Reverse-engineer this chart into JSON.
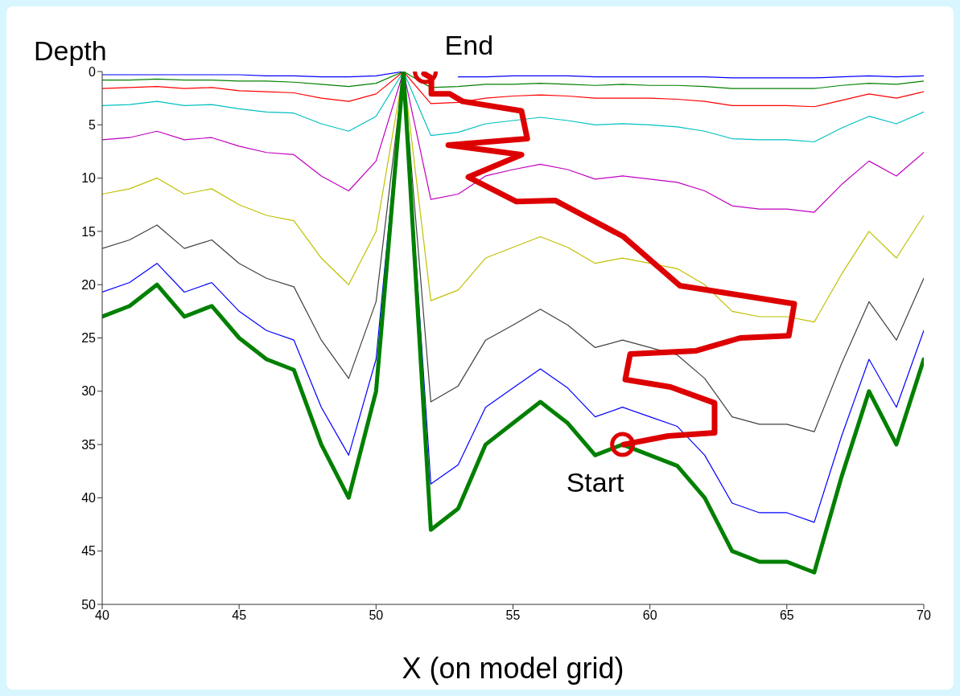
{
  "chart_data": {
    "type": "line",
    "xlabel": "X (on model grid)",
    "ylabel": "Depth",
    "xlim": [
      40,
      70
    ],
    "xticks": [
      40,
      45,
      50,
      55,
      60,
      65,
      70
    ],
    "ylim": [
      50,
      0
    ],
    "yticks": [
      0,
      5,
      10,
      15,
      20,
      25,
      30,
      35,
      40,
      45,
      50
    ],
    "marker": "none",
    "x": [
      40,
      41,
      42,
      43,
      44,
      45,
      46,
      47,
      48,
      49,
      50,
      51,
      52,
      53,
      54,
      55,
      56,
      57,
      58,
      59,
      60,
      61,
      62,
      63,
      64,
      65,
      66,
      67,
      68,
      69,
      70
    ],
    "series": [
      {
        "color": "#0000ff",
        "values": [
          0.3,
          0.3,
          0.3,
          0.3,
          0.3,
          0.3,
          0.4,
          0.4,
          0.5,
          0.5,
          0.4,
          0,
          null,
          0.5,
          0.5,
          0.4,
          0.4,
          0.4,
          0.5,
          0.5,
          0.5,
          0.5,
          0.5,
          0.6,
          0.6,
          0.6,
          0.6,
          0.5,
          0.4,
          0.5,
          0.4
        ]
      },
      {
        "color": "#008000",
        "values": [
          0.8,
          0.8,
          0.7,
          0.8,
          0.8,
          0.9,
          0.9,
          1,
          1.2,
          1.4,
          1.1,
          0,
          1.5,
          1.4,
          1.2,
          1.2,
          1.1,
          1.2,
          1.3,
          1.2,
          1.3,
          1.3,
          1.4,
          1.6,
          1.6,
          1.6,
          1.6,
          1.3,
          1.1,
          1.2,
          0.9
        ]
      },
      {
        "color": "#ff0000",
        "values": [
          1.6,
          1.5,
          1.4,
          1.6,
          1.5,
          1.8,
          1.9,
          2,
          2.5,
          2.8,
          2.1,
          0,
          3,
          2.9,
          2.5,
          2.3,
          2.2,
          2.3,
          2.5,
          2.5,
          2.5,
          2.6,
          2.8,
          3.2,
          3.2,
          3.2,
          3.3,
          2.7,
          2.1,
          2.5,
          1.9
        ]
      },
      {
        "color": "#00c0c0",
        "values": [
          3.2,
          3.1,
          2.8,
          3.2,
          3.1,
          3.5,
          3.8,
          3.9,
          4.9,
          5.6,
          4.2,
          0,
          6,
          5.7,
          4.9,
          4.6,
          4.3,
          4.6,
          5,
          4.9,
          5,
          5.2,
          5.6,
          6.3,
          6.4,
          6.4,
          6.6,
          5.3,
          4.2,
          4.9,
          3.8
        ]
      },
      {
        "color": "#c000c0",
        "values": [
          6.4,
          6.2,
          5.6,
          6.4,
          6.2,
          7,
          7.6,
          7.8,
          9.8,
          11.2,
          8.4,
          0,
          12,
          11.5,
          9.8,
          9.2,
          8.7,
          9.2,
          10.1,
          9.8,
          10.1,
          10.4,
          11.2,
          12.6,
          12.9,
          12.9,
          13.2,
          10.6,
          8.4,
          9.8,
          7.6
        ]
      },
      {
        "color": "#c0c000",
        "values": [
          11.5,
          11,
          10,
          11.5,
          11,
          12.5,
          13.5,
          14,
          17.5,
          20,
          15,
          0,
          21.5,
          20.5,
          17.5,
          16.5,
          15.5,
          16.5,
          18,
          17.5,
          18,
          18.5,
          20,
          22.5,
          23,
          23,
          23.5,
          19,
          15,
          17.5,
          13.5
        ]
      },
      {
        "color": "#404040",
        "values": [
          16.6,
          15.8,
          14.4,
          16.6,
          15.8,
          18,
          19.4,
          20.2,
          25.2,
          28.8,
          21.6,
          0,
          31,
          29.5,
          25.2,
          23.8,
          22.3,
          23.8,
          25.9,
          25.2,
          25.9,
          26.6,
          28.8,
          32.4,
          33.1,
          33.1,
          33.8,
          27.4,
          21.6,
          25.2,
          19.4
        ]
      },
      {
        "color": "#0000ff",
        "values": [
          20.7,
          19.8,
          18,
          20.7,
          19.8,
          22.5,
          24.3,
          25.2,
          31.5,
          36,
          27,
          0,
          38.7,
          36.9,
          31.5,
          29.7,
          27.9,
          29.7,
          32.4,
          31.5,
          32.4,
          33.3,
          36,
          40.5,
          41.4,
          41.4,
          42.3,
          34.2,
          27,
          31.5,
          24.3
        ]
      },
      {
        "color": "#008000",
        "values": [
          23,
          22,
          20,
          23,
          22,
          25,
          27,
          28,
          35,
          40,
          30,
          0,
          43,
          41,
          35,
          33,
          31,
          33,
          36,
          35,
          36,
          37,
          40,
          45,
          46,
          46,
          47,
          38,
          30,
          35,
          27
        ]
      },
      {
        "color": "#dd0000",
        "x": [
          59.04,
          60.66,
          62.36,
          62.36,
          60.75,
          59.1,
          59.28,
          61.69,
          63.3,
          65.07,
          65.27,
          61.1,
          59.04,
          56.54,
          55.13,
          53.37,
          55.31,
          52.64,
          55.52,
          55.31,
          53.16,
          52.69,
          52.02,
          52.02,
          51.75
        ],
        "values": [
          35,
          34.2,
          33.9,
          31.1,
          29.6,
          28.9,
          26.5,
          26.2,
          25,
          24.8,
          21.8,
          20.1,
          15.5,
          12.1,
          12.2,
          9.9,
          7.8,
          6.9,
          6.3,
          3.7,
          2.8,
          2.1,
          2.1,
          0.6,
          0.2
        ]
      },
      {
        "type": "scatter",
        "color": "#dd0000",
        "marker": "circle",
        "x": [
          59,
          51.8
        ],
        "values": [
          35,
          0
        ]
      }
    ],
    "annotations": [
      {
        "text": "Start",
        "x": 59,
        "y": 35
      },
      {
        "text": "End",
        "x": 51.8,
        "y": 0
      }
    ]
  }
}
